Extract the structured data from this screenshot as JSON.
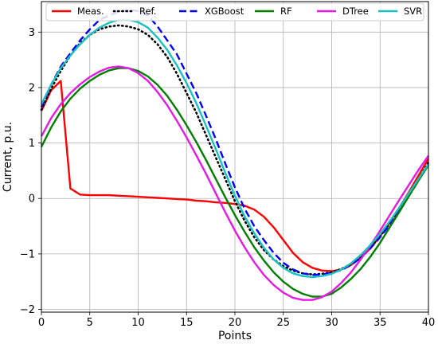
{
  "chart_data": {
    "type": "line",
    "xlabel": "Points",
    "ylabel": "Current, p.u.",
    "xlim": [
      0,
      40
    ],
    "ylim": [
      -2.05,
      3.55
    ],
    "xticks": [
      0,
      5,
      10,
      15,
      20,
      25,
      30,
      35,
      40
    ],
    "yticks": [
      -2,
      -1,
      0,
      1,
      2,
      3
    ],
    "grid": true,
    "legend_position": "top",
    "x": [
      0,
      1,
      2,
      3,
      4,
      5,
      6,
      7,
      8,
      9,
      10,
      11,
      12,
      13,
      14,
      15,
      16,
      17,
      18,
      19,
      20,
      21,
      22,
      23,
      24,
      25,
      26,
      27,
      28,
      29,
      30,
      31,
      32,
      33,
      34,
      35,
      36,
      37,
      38,
      39,
      40
    ],
    "series": [
      {
        "name": "Meas.",
        "color": "#ff0000",
        "style": "solid",
        "values": [
          1.58,
          1.95,
          2.12,
          0.18,
          0.07,
          0.06,
          0.06,
          0.06,
          0.05,
          0.04,
          0.03,
          0.02,
          0.01,
          0.0,
          -0.01,
          -0.02,
          -0.04,
          -0.05,
          -0.07,
          -0.08,
          -0.1,
          -0.13,
          -0.2,
          -0.33,
          -0.52,
          -0.75,
          -0.98,
          -1.15,
          -1.25,
          -1.3,
          -1.31,
          -1.28,
          -1.2,
          -1.07,
          -0.9,
          -0.68,
          -0.43,
          -0.16,
          0.12,
          0.42,
          0.72
        ]
      },
      {
        "name": "Ref.",
        "color": "#000000",
        "style": "dotted",
        "values": [
          1.6,
          1.98,
          2.3,
          2.58,
          2.8,
          2.95,
          3.05,
          3.1,
          3.12,
          3.1,
          3.05,
          2.95,
          2.78,
          2.55,
          2.25,
          1.9,
          1.55,
          1.15,
          0.75,
          0.35,
          -0.05,
          -0.4,
          -0.7,
          -0.93,
          -1.1,
          -1.22,
          -1.3,
          -1.35,
          -1.37,
          -1.36,
          -1.33,
          -1.27,
          -1.18,
          -1.05,
          -0.88,
          -0.68,
          -0.45,
          -0.2,
          0.07,
          0.35,
          0.65
        ]
      },
      {
        "name": "XGBoost",
        "color": "#0000ff",
        "style": "dashed",
        "values": [
          1.65,
          2.05,
          2.38,
          2.62,
          2.85,
          3.05,
          3.22,
          3.3,
          3.37,
          3.4,
          3.38,
          3.3,
          3.1,
          2.85,
          2.6,
          2.25,
          1.9,
          1.5,
          1.08,
          0.63,
          0.2,
          -0.18,
          -0.5,
          -0.75,
          -0.98,
          -1.16,
          -1.28,
          -1.35,
          -1.38,
          -1.37,
          -1.34,
          -1.29,
          -1.2,
          -1.07,
          -0.9,
          -0.7,
          -0.47,
          -0.22,
          0.05,
          0.33,
          0.62
        ]
      },
      {
        "name": "RF",
        "color": "#008000",
        "style": "solid",
        "values": [
          0.93,
          1.28,
          1.57,
          1.8,
          1.98,
          2.12,
          2.23,
          2.31,
          2.35,
          2.35,
          2.3,
          2.2,
          2.05,
          1.85,
          1.6,
          1.32,
          1.02,
          0.7,
          0.36,
          0.02,
          -0.3,
          -0.6,
          -0.88,
          -1.12,
          -1.33,
          -1.5,
          -1.63,
          -1.72,
          -1.77,
          -1.77,
          -1.72,
          -1.6,
          -1.45,
          -1.27,
          -1.05,
          -0.8,
          -0.52,
          -0.24,
          0.05,
          0.33,
          0.6
        ]
      },
      {
        "name": "DTree",
        "color": "#e619e6",
        "style": "solid",
        "values": [
          1.12,
          1.45,
          1.7,
          1.9,
          2.06,
          2.19,
          2.29,
          2.36,
          2.38,
          2.35,
          2.26,
          2.12,
          1.92,
          1.68,
          1.4,
          1.1,
          0.78,
          0.45,
          0.1,
          -0.25,
          -0.58,
          -0.88,
          -1.15,
          -1.38,
          -1.56,
          -1.7,
          -1.79,
          -1.83,
          -1.83,
          -1.78,
          -1.68,
          -1.52,
          -1.33,
          -1.1,
          -0.85,
          -0.58,
          -0.3,
          -0.02,
          0.25,
          0.52,
          0.77
        ]
      },
      {
        "name": "SVR",
        "color": "#19c2c2",
        "style": "solid",
        "values": [
          1.7,
          2.05,
          2.35,
          2.58,
          2.78,
          2.95,
          3.08,
          3.17,
          3.22,
          3.22,
          3.18,
          3.08,
          2.9,
          2.68,
          2.4,
          2.08,
          1.72,
          1.32,
          0.9,
          0.46,
          0.05,
          -0.32,
          -0.63,
          -0.89,
          -1.1,
          -1.25,
          -1.35,
          -1.4,
          -1.42,
          -1.4,
          -1.36,
          -1.28,
          -1.17,
          -1.02,
          -0.84,
          -0.64,
          -0.41,
          -0.16,
          0.1,
          0.36,
          0.62
        ]
      }
    ]
  }
}
